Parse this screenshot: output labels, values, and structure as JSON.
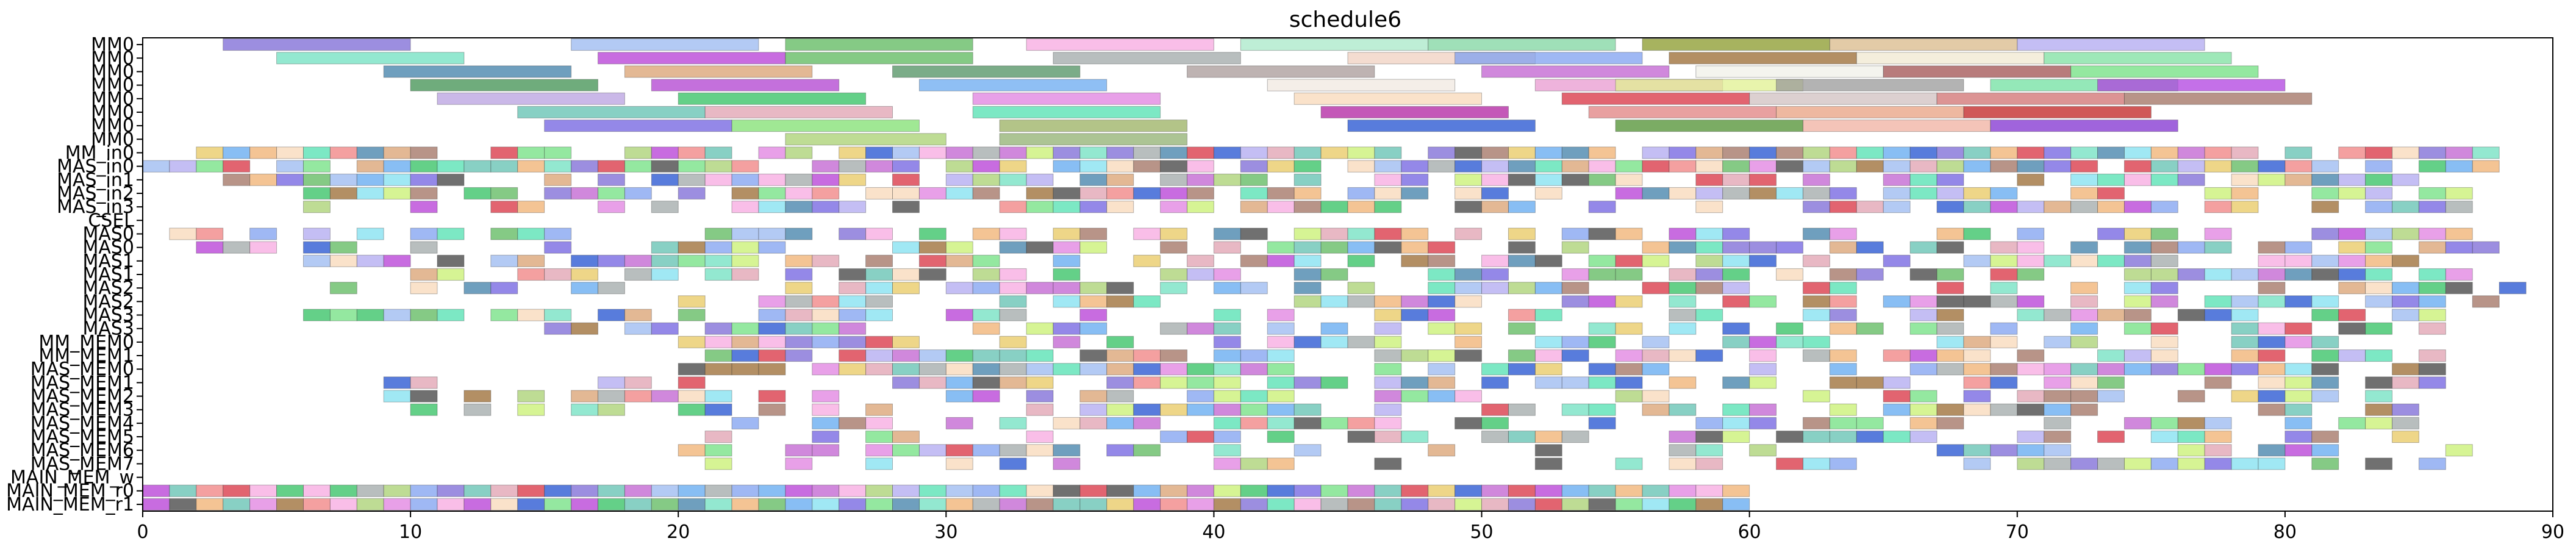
{
  "chart_data": {
    "type": "gantt",
    "title": "schedule6",
    "xlabel": "",
    "ylabel": "",
    "xlim": [
      0,
      90
    ],
    "x_ticks": [
      0,
      10,
      20,
      30,
      40,
      50,
      60,
      70,
      80,
      90
    ],
    "grid": false,
    "legend": "none",
    "resources": [
      "MM0",
      "MM0",
      "MM0",
      "MM0",
      "MM0",
      "MM0",
      "MM0",
      "MM0",
      "MM_in0",
      "MAS_in0",
      "MAS_in1",
      "MAS_in2",
      "MAS_in3",
      "CSEL",
      "MAS0",
      "MAS0",
      "MAS1",
      "MAS1",
      "MAS2",
      "MAS2",
      "MAS3",
      "MAS3",
      "MM_MEM0",
      "MM_MEM1",
      "MAS_MEM0",
      "MAS_MEM1",
      "MAS_MEM2",
      "MAS_MEM3",
      "MAS_MEM4",
      "MAS_MEM5",
      "MAS_MEM6",
      "MAS_MEM7",
      "MAIN_MEM_w",
      "MAIN_MEM_r0",
      "MAIN_MEM_r1"
    ],
    "bars": [
      {
        "row": 0,
        "start": 3,
        "end": 10,
        "color": "#7b68d6"
      },
      {
        "row": 0,
        "start": 16,
        "end": 23,
        "color": "#9ab8f0"
      },
      {
        "row": 0,
        "start": 24,
        "end": 31,
        "color": "#5cb85c"
      },
      {
        "row": 0,
        "start": 33,
        "end": 40,
        "color": "#f7a8e0"
      },
      {
        "row": 0,
        "start": 41,
        "end": 48,
        "color": "#a8e8c8"
      },
      {
        "row": 0,
        "start": 48,
        "end": 55,
        "color": "#7fd6a0"
      },
      {
        "row": 0,
        "start": 56,
        "end": 63,
        "color": "#8a9a2a"
      },
      {
        "row": 0,
        "start": 63,
        "end": 70,
        "color": "#d9b98a"
      },
      {
        "row": 0,
        "start": 70,
        "end": 77,
        "color": "#b0a8f0"
      },
      {
        "row": 1,
        "start": 5,
        "end": 12,
        "color": "#6fe0c0"
      },
      {
        "row": 1,
        "start": 17,
        "end": 24,
        "color": "#b53bd6"
      },
      {
        "row": 1,
        "start": 24,
        "end": 31,
        "color": "#5cb85c"
      },
      {
        "row": 1,
        "start": 34,
        "end": 41,
        "color": "#a0a8a8"
      },
      {
        "row": 1,
        "start": 45,
        "end": 52,
        "color": "#f0d0c0"
      },
      {
        "row": 1,
        "start": 49,
        "end": 56,
        "color": "#7fa0f0"
      },
      {
        "row": 1,
        "start": 57,
        "end": 64,
        "color": "#9a6a30"
      },
      {
        "row": 1,
        "start": 64,
        "end": 71,
        "color": "#f0e8d0"
      },
      {
        "row": 1,
        "start": 71,
        "end": 78,
        "color": "#7ee0a0"
      },
      {
        "row": 2,
        "start": 9,
        "end": 16,
        "color": "#3f7fa8"
      },
      {
        "row": 2,
        "start": 18,
        "end": 25,
        "color": "#d9a070"
      },
      {
        "row": 2,
        "start": 28,
        "end": 35,
        "color": "#4f9060"
      },
      {
        "row": 2,
        "start": 39,
        "end": 46,
        "color": "#a89a98"
      },
      {
        "row": 2,
        "start": 50,
        "end": 57,
        "color": "#c060d0"
      },
      {
        "row": 2,
        "start": 58,
        "end": 65,
        "color": "#f0f0e8"
      },
      {
        "row": 2,
        "start": 65,
        "end": 72,
        "color": "#a05050"
      },
      {
        "row": 2,
        "start": 72,
        "end": 79,
        "color": "#70e080"
      },
      {
        "row": 3,
        "start": 10,
        "end": 17,
        "color": "#3f9050"
      },
      {
        "row": 3,
        "start": 19,
        "end": 26,
        "color": "#b040d0"
      },
      {
        "row": 3,
        "start": 29,
        "end": 36,
        "color": "#6aaaf0"
      },
      {
        "row": 3,
        "start": 42,
        "end": 49,
        "color": "#f0e8e0"
      },
      {
        "row": 3,
        "start": 52,
        "end": 59,
        "color": "#e89ad0"
      },
      {
        "row": 3,
        "start": 55,
        "end": 62,
        "color": "#e0f090"
      },
      {
        "row": 3,
        "start": 61,
        "end": 68,
        "color": "#9a9a9a"
      },
      {
        "row": 3,
        "start": 69,
        "end": 76,
        "color": "#70e0a0"
      },
      {
        "row": 3,
        "start": 73,
        "end": 80,
        "color": "#b040e0"
      },
      {
        "row": 4,
        "start": 11,
        "end": 18,
        "color": "#b8a0e0"
      },
      {
        "row": 4,
        "start": 20,
        "end": 27,
        "color": "#30c060"
      },
      {
        "row": 4,
        "start": 31,
        "end": 38,
        "color": "#e080e0"
      },
      {
        "row": 4,
        "start": 43,
        "end": 50,
        "color": "#f8d8b8"
      },
      {
        "row": 4,
        "start": 53,
        "end": 60,
        "color": "#d83040"
      },
      {
        "row": 4,
        "start": 60,
        "end": 67,
        "color": "#d0c0c0"
      },
      {
        "row": 4,
        "start": 67,
        "end": 74,
        "color": "#d07070"
      },
      {
        "row": 4,
        "start": 74,
        "end": 81,
        "color": "#a07060"
      },
      {
        "row": 5,
        "start": 14,
        "end": 21,
        "color": "#60c0b0"
      },
      {
        "row": 5,
        "start": 21,
        "end": 28,
        "color": "#e0a0b0"
      },
      {
        "row": 5,
        "start": 31,
        "end": 38,
        "color": "#50e0b0"
      },
      {
        "row": 5,
        "start": 44,
        "end": 51,
        "color": "#b020a0"
      },
      {
        "row": 5,
        "start": 54,
        "end": 61,
        "color": "#e08080"
      },
      {
        "row": 5,
        "start": 61,
        "end": 68,
        "color": "#e8a080"
      },
      {
        "row": 5,
        "start": 68,
        "end": 75,
        "color": "#c02020"
      },
      {
        "row": 6,
        "start": 15,
        "end": 22,
        "color": "#7060e0"
      },
      {
        "row": 6,
        "start": 22,
        "end": 29,
        "color": "#80e070"
      },
      {
        "row": 6,
        "start": 32,
        "end": 39,
        "color": "#9ab060"
      },
      {
        "row": 6,
        "start": 45,
        "end": 52,
        "color": "#2050d0"
      },
      {
        "row": 6,
        "start": 55,
        "end": 62,
        "color": "#4f9030"
      },
      {
        "row": 6,
        "start": 62,
        "end": 69,
        "color": "#f0b0a0"
      },
      {
        "row": 6,
        "start": 69,
        "end": 76,
        "color": "#8030d0"
      },
      {
        "row": 7,
        "start": 24,
        "end": 30,
        "color": "#a8d070"
      },
      {
        "row": 7,
        "start": 32,
        "end": 39,
        "color": "#90b070"
      }
    ],
    "dense_rows": {
      "8": {
        "start": 2,
        "end": 88,
        "density": 0.82
      },
      "9": {
        "start": 0,
        "end": 88,
        "density": 0.9
      },
      "10": {
        "start": 3,
        "end": 87,
        "density": 0.7
      },
      "11": {
        "start": 6,
        "end": 87,
        "density": 0.72
      },
      "12": {
        "start": 5,
        "end": 87,
        "density": 0.55
      },
      "14": {
        "start": 1,
        "end": 87,
        "density": 0.55
      },
      "15": {
        "start": 2,
        "end": 90,
        "density": 0.62
      },
      "16": {
        "start": 4,
        "end": 86,
        "density": 0.6
      },
      "17": {
        "start": 8,
        "end": 87,
        "density": 0.62
      },
      "18": {
        "start": 7,
        "end": 89,
        "density": 0.65
      },
      "19": {
        "start": 20,
        "end": 88,
        "density": 0.66
      },
      "20": {
        "start": 6,
        "end": 86,
        "density": 0.55
      },
      "21": {
        "start": 15,
        "end": 86,
        "density": 0.58
      },
      "22": {
        "start": 20,
        "end": 85,
        "density": 0.62
      },
      "23": {
        "start": 20,
        "end": 86,
        "density": 0.64
      },
      "24": {
        "start": 20,
        "end": 86,
        "density": 0.62
      },
      "25": {
        "start": 9,
        "end": 86,
        "density": 0.62
      },
      "26": {
        "start": 9,
        "end": 86,
        "density": 0.58
      },
      "27": {
        "start": 10,
        "end": 86,
        "density": 0.55
      },
      "28": {
        "start": 21,
        "end": 85,
        "density": 0.6
      },
      "29": {
        "start": 21,
        "end": 86,
        "density": 0.58
      },
      "30": {
        "start": 19,
        "end": 87,
        "density": 0.55
      },
      "31": {
        "start": 19,
        "end": 86,
        "density": 0.5
      },
      "32": {
        "start": 0,
        "end": 60,
        "density": 0.0
      },
      "33": {
        "start": 0,
        "end": 60,
        "density": 1.0
      },
      "34": {
        "start": 0,
        "end": 60,
        "density": 1.0
      }
    }
  }
}
